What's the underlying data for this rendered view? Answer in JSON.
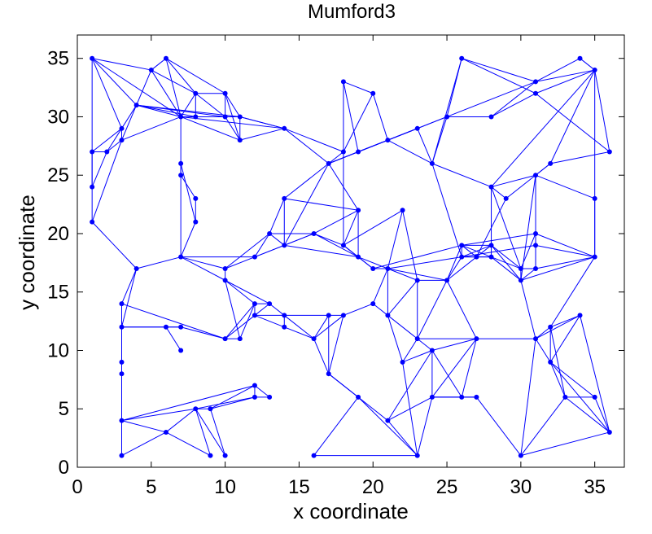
{
  "chart_data": {
    "type": "scatter",
    "title": "Mumford3",
    "xlabel": "x coordinate",
    "ylabel": "y coordinate",
    "xlim": [
      0,
      37
    ],
    "ylim": [
      0,
      37
    ],
    "xticks": [
      0,
      5,
      10,
      15,
      20,
      25,
      30,
      35
    ],
    "yticks": [
      0,
      5,
      10,
      15,
      20,
      25,
      30,
      35
    ],
    "grid": false,
    "color": "#0000ff",
    "marker": "filled-circle",
    "nodes": [
      [
        1,
        35
      ],
      [
        6,
        35
      ],
      [
        5,
        34
      ],
      [
        8,
        32
      ],
      [
        10,
        32
      ],
      [
        4,
        31
      ],
      [
        3,
        29
      ],
      [
        1,
        27
      ],
      [
        2,
        27
      ],
      [
        3,
        28
      ],
      [
        7,
        30
      ],
      [
        8,
        30
      ],
      [
        10,
        30
      ],
      [
        11,
        30
      ],
      [
        11,
        28
      ],
      [
        1,
        24
      ],
      [
        1,
        21
      ],
      [
        7,
        26
      ],
      [
        7,
        25
      ],
      [
        8,
        23
      ],
      [
        8,
        21
      ],
      [
        14,
        29
      ],
      [
        18,
        33
      ],
      [
        20,
        32
      ],
      [
        18,
        27
      ],
      [
        19,
        27
      ],
      [
        17,
        26
      ],
      [
        21,
        28
      ],
      [
        23,
        29
      ],
      [
        24,
        26
      ],
      [
        25,
        30
      ],
      [
        26,
        35
      ],
      [
        28,
        30
      ],
      [
        31,
        33
      ],
      [
        31,
        32
      ],
      [
        34,
        35
      ],
      [
        35,
        34
      ],
      [
        36,
        27
      ],
      [
        32,
        26
      ],
      [
        29,
        23
      ],
      [
        31,
        25
      ],
      [
        28,
        24
      ],
      [
        35,
        23
      ],
      [
        4,
        17
      ],
      [
        7,
        18
      ],
      [
        10,
        17
      ],
      [
        10,
        16
      ],
      [
        12,
        18
      ],
      [
        13,
        20
      ],
      [
        14,
        23
      ],
      [
        14,
        19
      ],
      [
        16,
        20
      ],
      [
        18,
        19
      ],
      [
        19,
        22
      ],
      [
        19,
        18
      ],
      [
        20,
        17
      ],
      [
        21,
        17
      ],
      [
        22,
        22
      ],
      [
        23,
        16
      ],
      [
        25,
        16
      ],
      [
        26,
        19
      ],
      [
        26,
        18
      ],
      [
        27,
        18
      ],
      [
        28,
        19
      ],
      [
        28,
        18
      ],
      [
        30,
        17
      ],
      [
        30,
        16
      ],
      [
        31,
        17
      ],
      [
        31,
        20
      ],
      [
        31,
        19
      ],
      [
        35,
        18
      ],
      [
        3,
        14
      ],
      [
        3,
        12
      ],
      [
        6,
        12
      ],
      [
        7,
        12
      ],
      [
        7,
        10
      ],
      [
        10,
        11
      ],
      [
        11,
        11
      ],
      [
        12,
        14
      ],
      [
        12,
        13
      ],
      [
        13,
        14
      ],
      [
        14,
        13
      ],
      [
        14,
        12
      ],
      [
        16,
        11
      ],
      [
        17,
        13
      ],
      [
        18,
        13
      ],
      [
        20,
        14
      ],
      [
        21,
        13
      ],
      [
        23,
        11
      ],
      [
        22,
        9
      ],
      [
        24,
        10
      ],
      [
        17,
        8
      ],
      [
        27,
        11
      ],
      [
        31,
        11
      ],
      [
        32,
        12
      ],
      [
        32,
        9
      ],
      [
        34,
        13
      ],
      [
        3,
        9
      ],
      [
        3,
        8
      ],
      [
        3,
        4
      ],
      [
        3,
        1
      ],
      [
        6,
        3
      ],
      [
        8,
        5
      ],
      [
        9,
        5
      ],
      [
        12,
        7
      ],
      [
        12,
        6
      ],
      [
        13,
        6
      ],
      [
        9,
        1
      ],
      [
        10,
        1
      ],
      [
        16,
        1
      ],
      [
        19,
        6
      ],
      [
        21,
        4
      ],
      [
        23,
        1
      ],
      [
        24,
        6
      ],
      [
        26,
        6
      ],
      [
        27,
        6
      ],
      [
        30,
        1
      ],
      [
        33,
        6
      ],
      [
        35,
        6
      ],
      [
        36,
        3
      ]
    ],
    "edges": [
      [
        0,
        2
      ],
      [
        0,
        5
      ],
      [
        0,
        6
      ],
      [
        0,
        7
      ],
      [
        0,
        10
      ],
      [
        1,
        2
      ],
      [
        1,
        3
      ],
      [
        1,
        10
      ],
      [
        1,
        4
      ],
      [
        2,
        5
      ],
      [
        2,
        10
      ],
      [
        2,
        3
      ],
      [
        3,
        10
      ],
      [
        3,
        11
      ],
      [
        3,
        4
      ],
      [
        3,
        12
      ],
      [
        4,
        12
      ],
      [
        4,
        13
      ],
      [
        4,
        14
      ],
      [
        5,
        6
      ],
      [
        5,
        9
      ],
      [
        5,
        10
      ],
      [
        5,
        11
      ],
      [
        5,
        12
      ],
      [
        5,
        13
      ],
      [
        6,
        8
      ],
      [
        6,
        9
      ],
      [
        6,
        7
      ],
      [
        7,
        8
      ],
      [
        7,
        15
      ],
      [
        8,
        9
      ],
      [
        8,
        15
      ],
      [
        9,
        10
      ],
      [
        9,
        16
      ],
      [
        10,
        11
      ],
      [
        10,
        17
      ],
      [
        10,
        14
      ],
      [
        10,
        21
      ],
      [
        11,
        12
      ],
      [
        12,
        13
      ],
      [
        13,
        14
      ],
      [
        12,
        14
      ],
      [
        13,
        21
      ],
      [
        15,
        16
      ],
      [
        15,
        7
      ],
      [
        16,
        43
      ],
      [
        17,
        18
      ],
      [
        17,
        20
      ],
      [
        17,
        44
      ],
      [
        18,
        19
      ],
      [
        19,
        20
      ],
      [
        20,
        44
      ],
      [
        21,
        26
      ],
      [
        21,
        24
      ],
      [
        22,
        23
      ],
      [
        22,
        24
      ],
      [
        22,
        25
      ],
      [
        23,
        24
      ],
      [
        23,
        27
      ],
      [
        24,
        26
      ],
      [
        25,
        26
      ],
      [
        25,
        27
      ],
      [
        25,
        28
      ],
      [
        25,
        30
      ],
      [
        26,
        27
      ],
      [
        26,
        49
      ],
      [
        26,
        50
      ],
      [
        26,
        53
      ],
      [
        27,
        28
      ],
      [
        27,
        29
      ],
      [
        28,
        29
      ],
      [
        28,
        30
      ],
      [
        28,
        26
      ],
      [
        29,
        30
      ],
      [
        29,
        41
      ],
      [
        29,
        31
      ],
      [
        30,
        32
      ],
      [
        30,
        31
      ],
      [
        30,
        33
      ],
      [
        31,
        33
      ],
      [
        31,
        34
      ],
      [
        32,
        34
      ],
      [
        32,
        33
      ],
      [
        33,
        35
      ],
      [
        33,
        36
      ],
      [
        34,
        36
      ],
      [
        35,
        36
      ],
      [
        36,
        37
      ],
      [
        36,
        38
      ],
      [
        34,
        37
      ],
      [
        37,
        38
      ],
      [
        38,
        40
      ],
      [
        38,
        39
      ],
      [
        39,
        41
      ],
      [
        40,
        41
      ],
      [
        40,
        42
      ],
      [
        40,
        68
      ],
      [
        41,
        63
      ],
      [
        41,
        36
      ],
      [
        42,
        70
      ],
      [
        43,
        44
      ],
      [
        43,
        71
      ],
      [
        43,
        72
      ],
      [
        44,
        45
      ],
      [
        44,
        46
      ],
      [
        44,
        47
      ],
      [
        45,
        46
      ],
      [
        45,
        47
      ],
      [
        45,
        48
      ],
      [
        46,
        78
      ],
      [
        46,
        77
      ],
      [
        46,
        80
      ],
      [
        47,
        48
      ],
      [
        47,
        50
      ],
      [
        47,
        51
      ],
      [
        48,
        49
      ],
      [
        48,
        50
      ],
      [
        48,
        51
      ],
      [
        49,
        53
      ],
      [
        49,
        50
      ],
      [
        50,
        51
      ],
      [
        50,
        54
      ],
      [
        51,
        52
      ],
      [
        51,
        54
      ],
      [
        51,
        53
      ],
      [
        52,
        54
      ],
      [
        52,
        53
      ],
      [
        52,
        55
      ],
      [
        53,
        54
      ],
      [
        54,
        55
      ],
      [
        55,
        56
      ],
      [
        54,
        56
      ],
      [
        56,
        57
      ],
      [
        56,
        58
      ],
      [
        56,
        59
      ],
      [
        56,
        86
      ],
      [
        56,
        87
      ],
      [
        57,
        58
      ],
      [
        58,
        59
      ],
      [
        58,
        88
      ],
      [
        58,
        87
      ],
      [
        59,
        60
      ],
      [
        59,
        61
      ],
      [
        59,
        62
      ],
      [
        59,
        88
      ],
      [
        59,
        92
      ],
      [
        60,
        61
      ],
      [
        60,
        62
      ],
      [
        60,
        63
      ],
      [
        60,
        64
      ],
      [
        61,
        62
      ],
      [
        61,
        63
      ],
      [
        61,
        64
      ],
      [
        62,
        63
      ],
      [
        62,
        64
      ],
      [
        63,
        64
      ],
      [
        63,
        65
      ],
      [
        63,
        66
      ],
      [
        64,
        65
      ],
      [
        64,
        66
      ],
      [
        65,
        66
      ],
      [
        65,
        67
      ],
      [
        65,
        68
      ],
      [
        66,
        67
      ],
      [
        66,
        93
      ],
      [
        66,
        70
      ],
      [
        67,
        68
      ],
      [
        67,
        69
      ],
      [
        67,
        70
      ],
      [
        68,
        69
      ],
      [
        68,
        70
      ],
      [
        69,
        70
      ],
      [
        70,
        94
      ],
      [
        70,
        36
      ],
      [
        55,
        60
      ],
      [
        56,
        61
      ],
      [
        60,
        68
      ],
      [
        61,
        69
      ],
      [
        39,
        62
      ],
      [
        29,
        61
      ],
      [
        41,
        65
      ],
      [
        40,
        66
      ],
      [
        71,
        72
      ],
      [
        71,
        76
      ],
      [
        71,
        97
      ],
      [
        72,
        73
      ],
      [
        72,
        74
      ],
      [
        73,
        74
      ],
      [
        73,
        75
      ],
      [
        74,
        76
      ],
      [
        76,
        77
      ],
      [
        76,
        78
      ],
      [
        76,
        79
      ],
      [
        77,
        78
      ],
      [
        78,
        79
      ],
      [
        78,
        80
      ],
      [
        79,
        80
      ],
      [
        79,
        81
      ],
      [
        79,
        82
      ],
      [
        80,
        81
      ],
      [
        81,
        82
      ],
      [
        81,
        83
      ],
      [
        81,
        84
      ],
      [
        82,
        83
      ],
      [
        83,
        84
      ],
      [
        83,
        85
      ],
      [
        83,
        91
      ],
      [
        84,
        85
      ],
      [
        85,
        86
      ],
      [
        86,
        87
      ],
      [
        87,
        88
      ],
      [
        87,
        89
      ],
      [
        88,
        89
      ],
      [
        88,
        90
      ],
      [
        88,
        92
      ],
      [
        89,
        90
      ],
      [
        89,
        112
      ],
      [
        90,
        92
      ],
      [
        90,
        111
      ],
      [
        90,
        113
      ],
      [
        90,
        114
      ],
      [
        92,
        93
      ],
      [
        92,
        113
      ],
      [
        92,
        114
      ],
      [
        93,
        94
      ],
      [
        93,
        95
      ],
      [
        93,
        96
      ],
      [
        94,
        95
      ],
      [
        94,
        96
      ],
      [
        94,
        117
      ],
      [
        95,
        96
      ],
      [
        95,
        118
      ],
      [
        95,
        119
      ],
      [
        96,
        119
      ],
      [
        97,
        98
      ],
      [
        98,
        99
      ],
      [
        98,
        100
      ],
      [
        99,
        101
      ],
      [
        99,
        102
      ],
      [
        99,
        104
      ],
      [
        100,
        101
      ],
      [
        101,
        102
      ],
      [
        101,
        107
      ],
      [
        102,
        103
      ],
      [
        102,
        107
      ],
      [
        102,
        108
      ],
      [
        103,
        108
      ],
      [
        103,
        104
      ],
      [
        103,
        105
      ],
      [
        104,
        105
      ],
      [
        104,
        106
      ],
      [
        105,
        106
      ],
      [
        102,
        105
      ],
      [
        91,
        110
      ],
      [
        91,
        111
      ],
      [
        91,
        84
      ],
      [
        109,
        110
      ],
      [
        109,
        112
      ],
      [
        110,
        112
      ],
      [
        111,
        112
      ],
      [
        111,
        113
      ],
      [
        112,
        113
      ],
      [
        113,
        114
      ],
      [
        113,
        115
      ],
      [
        114,
        115
      ],
      [
        115,
        116
      ],
      [
        115,
        113
      ],
      [
        116,
        117
      ],
      [
        116,
        119
      ],
      [
        116,
        93
      ],
      [
        117,
        118
      ],
      [
        117,
        119
      ],
      [
        118,
        119
      ],
      [
        117,
        95
      ],
      [
        21,
        13
      ],
      [
        21,
        14
      ],
      [
        24,
        52
      ],
      [
        57,
        52
      ],
      [
        85,
        91
      ]
    ]
  }
}
